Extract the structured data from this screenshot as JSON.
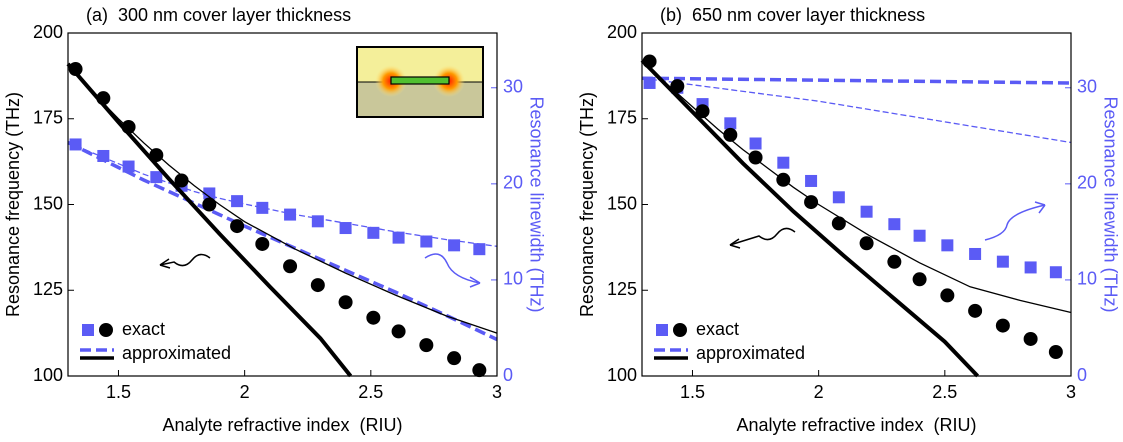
{
  "chart_data": [
    {
      "type": "line",
      "title": "(a)  300 nm cover layer thickness",
      "x_label": "Analyte refractive index  (RIU)",
      "y_label": "Resonance frequency (THz)",
      "y2_label": "Resonance linewidth (THz)",
      "xlim": [
        1.3,
        3
      ],
      "xticks": [
        1.5,
        2,
        2.5,
        3
      ],
      "ylim": [
        100,
        200
      ],
      "yticks": [
        100,
        125,
        150,
        175,
        200
      ],
      "y2lim": [
        0,
        35.7
      ],
      "y2ticks": [
        0,
        10,
        20,
        30
      ],
      "y2color": "#5b5bf5",
      "legend": [
        "exact",
        "approximated"
      ],
      "legend_loc": "lower left",
      "series": [
        {
          "style": "dashed",
          "width": 1.3,
          "axis": "y2",
          "color": "#5b5bf5",
          "x": [
            1.3,
            1.4,
            1.5,
            1.6,
            1.7,
            1.8,
            1.9,
            2.0,
            2.2,
            2.4,
            2.6,
            2.8,
            3.0
          ],
          "values": [
            24.3,
            23.2,
            22.1,
            21.0,
            20.1,
            19.2,
            18.5,
            17.9,
            16.8,
            15.9,
            15.0,
            14.2,
            13.5
          ]
        },
        {
          "style": "dashed",
          "width": 3.5,
          "axis": "y2",
          "color": "#5b5bf5",
          "x": [
            1.3,
            1.4,
            1.5,
            1.6,
            1.7,
            1.8,
            1.9,
            2.0,
            2.2,
            2.4,
            2.6,
            2.8,
            3.0
          ],
          "values": [
            24.3,
            23.0,
            21.7,
            20.4,
            19.2,
            18.0,
            16.8,
            15.6,
            13.3,
            11.0,
            8.7,
            6.3,
            3.8
          ]
        },
        {
          "style": "square",
          "axis": "y2",
          "color": "#5b5bf5",
          "x": [
            1.33,
            1.44,
            1.54,
            1.65,
            1.75,
            1.86,
            1.97,
            2.07,
            2.18,
            2.29,
            2.4,
            2.51,
            2.61,
            2.72,
            2.83,
            2.93
          ],
          "values": [
            24.1,
            22.9,
            21.8,
            20.7,
            19.8,
            19.0,
            18.2,
            17.5,
            16.8,
            16.1,
            15.4,
            14.9,
            14.4,
            14.0,
            13.6,
            13.2
          ]
        },
        {
          "style": "solid",
          "width": 1.3,
          "axis": "y",
          "color": "#000000",
          "x": [
            1.3,
            1.4,
            1.5,
            1.6,
            1.7,
            1.8,
            1.9,
            2.0,
            2.2,
            2.4,
            2.6,
            2.8,
            3.0
          ],
          "values": [
            191,
            182.5,
            175,
            168,
            161.5,
            155.5,
            150,
            145,
            137,
            130,
            123.5,
            117.5,
            112.5
          ]
        },
        {
          "style": "solid",
          "width": 4,
          "axis": "y",
          "color": "#000000",
          "x": [
            1.3,
            1.5,
            1.7,
            1.9,
            2.1,
            2.3,
            2.42
          ],
          "values": [
            191,
            174,
            157.5,
            141.5,
            126,
            111,
            100
          ]
        },
        {
          "style": "circle",
          "axis": "y",
          "color": "#000000",
          "x": [
            1.33,
            1.44,
            1.54,
            1.65,
            1.75,
            1.86,
            1.97,
            2.07,
            2.18,
            2.29,
            2.4,
            2.51,
            2.61,
            2.72,
            2.83,
            2.93
          ],
          "values": [
            189.5,
            181,
            172.6,
            164.4,
            157,
            150,
            143.7,
            138.5,
            132,
            126.5,
            121.5,
            117,
            113,
            109,
            105.2,
            101.7
          ]
        }
      ]
    },
    {
      "type": "line",
      "title": "(b)  650 nm cover layer thickness",
      "x_label": "Analyte refractive index  (RIU)",
      "y_label": "Resonance frequency (THz)",
      "y2_label": "Resonance linewidth (THz)",
      "xlim": [
        1.3,
        3
      ],
      "xticks": [
        1.5,
        2,
        2.5,
        3
      ],
      "ylim": [
        100,
        200
      ],
      "yticks": [
        100,
        125,
        150,
        175,
        200
      ],
      "y2lim": [
        0,
        35.7
      ],
      "y2ticks": [
        0,
        10,
        20,
        30
      ],
      "y2color": "#5b5bf5",
      "legend": [
        "exact",
        "approximated"
      ],
      "legend_loc": "lower left",
      "series": [
        {
          "style": "dashed",
          "width": 1.3,
          "axis": "y2",
          "color": "#5b5bf5",
          "x": [
            1.3,
            2.0,
            3.0
          ],
          "values": [
            31.0,
            28.6,
            24.3
          ]
        },
        {
          "style": "dashed",
          "width": 3.5,
          "axis": "y2",
          "color": "#5b5bf5",
          "x": [
            1.3,
            3.0
          ],
          "values": [
            31.0,
            30.5
          ]
        },
        {
          "style": "square",
          "axis": "y2",
          "color": "#5b5bf5",
          "x": [
            1.33,
            1.44,
            1.54,
            1.65,
            1.75,
            1.86,
            1.97,
            2.08,
            2.19,
            2.3,
            2.4,
            2.51,
            2.62,
            2.73,
            2.84,
            2.94
          ],
          "values": [
            30.5,
            30.0,
            28.3,
            26.3,
            24.2,
            22.2,
            20.3,
            18.6,
            17.1,
            15.8,
            14.6,
            13.6,
            12.7,
            11.9,
            11.3,
            10.8
          ]
        },
        {
          "style": "solid",
          "width": 1.3,
          "axis": "y",
          "color": "#000000",
          "x": [
            1.3,
            1.4,
            1.5,
            1.6,
            1.7,
            1.8,
            1.9,
            2.0,
            2.2,
            2.4,
            2.6,
            2.8,
            3.0
          ],
          "values": [
            192,
            185,
            178.5,
            172,
            166,
            160.5,
            155,
            150,
            141,
            133,
            126,
            122,
            118.5
          ]
        },
        {
          "style": "solid",
          "width": 4,
          "axis": "y",
          "color": "#000000",
          "x": [
            1.3,
            1.5,
            1.7,
            1.9,
            2.1,
            2.3,
            2.5,
            2.63
          ],
          "values": [
            192,
            177,
            162,
            148,
            135,
            122.5,
            110,
            100
          ]
        },
        {
          "style": "circle",
          "axis": "y",
          "color": "#000000",
          "x": [
            1.33,
            1.44,
            1.54,
            1.65,
            1.75,
            1.86,
            1.97,
            2.08,
            2.19,
            2.3,
            2.4,
            2.51,
            2.62,
            2.73,
            2.84,
            2.94
          ],
          "values": [
            191.7,
            184.5,
            177.2,
            170.3,
            163.7,
            157.2,
            150.7,
            144.5,
            138.7,
            133.3,
            128.2,
            123.5,
            119,
            114.7,
            110.8,
            107
          ]
        }
      ]
    }
  ]
}
